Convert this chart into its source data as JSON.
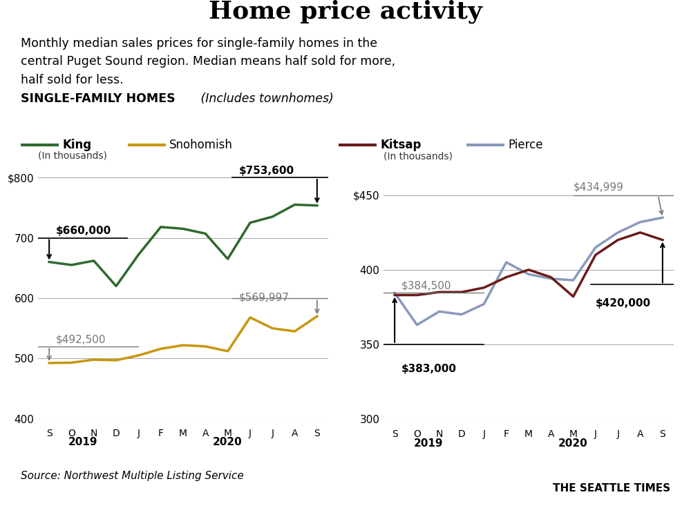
{
  "title": "Home price activity",
  "subtitle": "Monthly median sales prices for single-family homes in the\ncentral Puget Sound region. Median means half sold for more,\nhalf sold for less.",
  "section_label": "SINGLE-FAMILY HOMES",
  "section_italic": "(Includes townhomes)",
  "source": "Source: Northwest Multiple Listing Service",
  "credit": "THE SEATTLE TIMES",
  "months": [
    "S",
    "O",
    "N",
    "D",
    "J",
    "F",
    "M",
    "A",
    "M",
    "J",
    "J",
    "A",
    "S"
  ],
  "king": [
    660,
    655,
    662,
    620,
    672,
    718,
    715,
    707,
    665,
    725,
    735,
    755,
    753.6
  ],
  "snohomish": [
    492.5,
    493,
    498,
    497,
    505,
    516,
    522,
    520,
    512,
    568,
    550,
    545,
    570
  ],
  "kitsap": [
    383,
    383,
    385,
    385,
    388,
    395,
    400,
    395,
    382,
    410,
    420,
    425,
    420
  ],
  "pierce": [
    384.5,
    363,
    372,
    370,
    377,
    405,
    397,
    394,
    393,
    415,
    425,
    432,
    435
  ],
  "king_color": "#2d6a2d",
  "snohomish_color": "#c8960c",
  "kitsap_color": "#6b1a1a",
  "pierce_color": "#8899bb",
  "left_ylim": [
    400,
    820
  ],
  "left_yticks": [
    400,
    500,
    600,
    700,
    800
  ],
  "left_ytick_labels": [
    "400",
    "500",
    "600",
    "700",
    "$800"
  ],
  "right_ylim": [
    300,
    470
  ],
  "right_yticks": [
    300,
    350,
    400,
    450
  ],
  "right_ytick_labels": [
    "300",
    "350",
    "400",
    "$450"
  ],
  "king_start_label": "$660,000",
  "king_end_label": "$753,600",
  "snohomish_start_label": "$492,500",
  "snohomish_end_label": "$569,997",
  "kitsap_start_label": "$383,000",
  "kitsap_end_label": "$420,000",
  "pierce_start_label": "$384,500",
  "pierce_end_label": "$434,999",
  "bg_color": "#ffffff",
  "grid_color": "#aaaaaa",
  "gray_color": "#777777"
}
